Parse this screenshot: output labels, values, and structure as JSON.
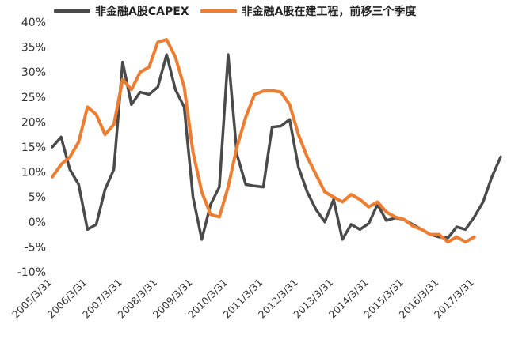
{
  "chart_data": {
    "type": "line",
    "title": "",
    "xlabel": "",
    "ylabel": "",
    "ylim": [
      -10,
      40
    ],
    "yticks": [
      "40%",
      "35%",
      "30%",
      "25%",
      "20%",
      "15%",
      "10%",
      "5%",
      "0%",
      "-5%",
      "-10%"
    ],
    "x_ticks": [
      "2005/3/31",
      "2006/3/31",
      "2007/3/31",
      "2008/3/31",
      "2009/3/31",
      "2010/3/31",
      "2011/3/31",
      "2012/3/31",
      "2013/3/31",
      "2014/3/31",
      "2015/3/31",
      "2016/3/31",
      "2017/3/31"
    ],
    "grid": false,
    "legend_position": "top",
    "series": [
      {
        "name": "非金融A股CAPEX",
        "color": "#4a4a4a",
        "points": [
          [
            "2005/3/31",
            15
          ],
          [
            "2005/6/30",
            17
          ],
          [
            "2005/9/30",
            10.5
          ],
          [
            "2005/12/31",
            7.5
          ],
          [
            "2006/3/31",
            -1.5
          ],
          [
            "2006/6/30",
            -0.5
          ],
          [
            "2006/9/30",
            6.5
          ],
          [
            "2006/12/31",
            10.5
          ],
          [
            "2007/3/31",
            32
          ],
          [
            "2007/6/30",
            23.5
          ],
          [
            "2007/9/30",
            26
          ],
          [
            "2007/12/31",
            25.5
          ],
          [
            "2008/3/31",
            27
          ],
          [
            "2008/6/30",
            33.5
          ],
          [
            "2008/9/30",
            26.5
          ],
          [
            "2008/12/31",
            23
          ],
          [
            "2009/3/31",
            5
          ],
          [
            "2009/6/30",
            -3.5
          ],
          [
            "2009/9/30",
            3.5
          ],
          [
            "2009/12/31",
            7
          ],
          [
            "2010/3/31",
            33.5
          ],
          [
            "2010/6/30",
            13.5
          ],
          [
            "2010/9/30",
            7.5
          ],
          [
            "2010/12/31",
            7.2
          ],
          [
            "2011/3/31",
            7
          ],
          [
            "2011/6/30",
            19
          ],
          [
            "2011/9/30",
            19.2
          ],
          [
            "2011/12/31",
            20.5
          ],
          [
            "2012/3/31",
            11
          ],
          [
            "2012/6/30",
            6
          ],
          [
            "2012/9/30",
            2.5
          ],
          [
            "2012/12/31",
            0
          ],
          [
            "2013/3/31",
            4.5
          ],
          [
            "2013/6/30",
            -3.5
          ],
          [
            "2013/9/30",
            -0.5
          ],
          [
            "2013/12/31",
            -1.5
          ],
          [
            "2014/3/31",
            -0.3
          ],
          [
            "2014/6/30",
            3.5
          ],
          [
            "2014/9/30",
            0.3
          ],
          [
            "2014/12/31",
            0.8
          ],
          [
            "2015/3/31",
            0.5
          ],
          [
            "2015/6/30",
            -0.5
          ],
          [
            "2015/9/30",
            -1.5
          ],
          [
            "2015/12/31",
            -2.5
          ],
          [
            "2016/3/31",
            -3
          ],
          [
            "2016/6/30",
            -3.2
          ],
          [
            "2016/9/30",
            -1
          ],
          [
            "2016/12/31",
            -1.5
          ],
          [
            "2017/3/31",
            1
          ],
          [
            "2017/6/30",
            4
          ],
          [
            "2017/9/30",
            9
          ],
          [
            "2017/12/31",
            13
          ]
        ]
      },
      {
        "name": "非金融A股在建工程，前移三个季度",
        "color": "#ed7d31",
        "points": [
          [
            "2005/3/31",
            9
          ],
          [
            "2005/6/30",
            11.5
          ],
          [
            "2005/9/30",
            13
          ],
          [
            "2005/12/31",
            16
          ],
          [
            "2006/3/31",
            23
          ],
          [
            "2006/6/30",
            21.5
          ],
          [
            "2006/9/30",
            17.5
          ],
          [
            "2006/12/31",
            19.5
          ],
          [
            "2007/3/31",
            28.5
          ],
          [
            "2007/6/30",
            26.5
          ],
          [
            "2007/9/30",
            30
          ],
          [
            "2007/12/31",
            31
          ],
          [
            "2008/3/31",
            36
          ],
          [
            "2008/6/30",
            36.5
          ],
          [
            "2008/9/30",
            33
          ],
          [
            "2008/12/31",
            27
          ],
          [
            "2009/3/31",
            14
          ],
          [
            "2009/6/30",
            6
          ],
          [
            "2009/9/30",
            1.5
          ],
          [
            "2009/12/31",
            1
          ],
          [
            "2010/3/31",
            7
          ],
          [
            "2010/6/30",
            15
          ],
          [
            "2010/9/30",
            21
          ],
          [
            "2010/12/31",
            25.5
          ],
          [
            "2011/3/31",
            26.2
          ],
          [
            "2011/6/30",
            26.3
          ],
          [
            "2011/9/30",
            26
          ],
          [
            "2011/12/31",
            23.5
          ],
          [
            "2012/3/31",
            17.5
          ],
          [
            "2012/6/30",
            13
          ],
          [
            "2012/9/30",
            9.5
          ],
          [
            "2012/12/31",
            6
          ],
          [
            "2013/3/31",
            5
          ],
          [
            "2013/6/30",
            4
          ],
          [
            "2013/9/30",
            5.5
          ],
          [
            "2013/12/31",
            4.5
          ],
          [
            "2014/3/31",
            3
          ],
          [
            "2014/6/30",
            4
          ],
          [
            "2014/9/30",
            2
          ],
          [
            "2014/12/31",
            1
          ],
          [
            "2015/3/31",
            0.5
          ],
          [
            "2015/6/30",
            -0.8
          ],
          [
            "2015/9/30",
            -1.5
          ],
          [
            "2015/12/31",
            -2.5
          ],
          [
            "2016/3/31",
            -2.5
          ],
          [
            "2016/6/30",
            -4
          ],
          [
            "2016/9/30",
            -3
          ],
          [
            "2016/12/31",
            -4
          ],
          [
            "2017/3/31",
            -3
          ]
        ]
      }
    ]
  }
}
